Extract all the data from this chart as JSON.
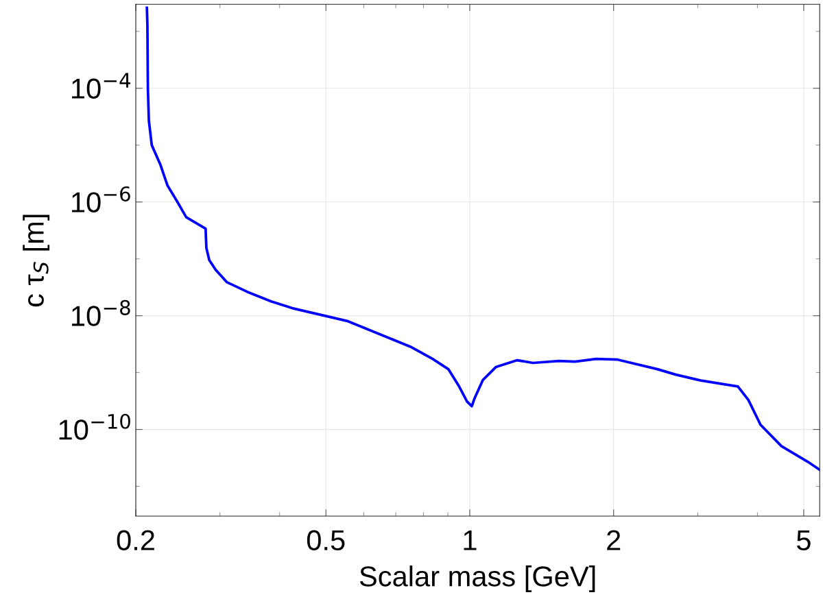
{
  "chart_data": {
    "type": "line",
    "xlabel": "Scalar mass [GeV]",
    "ylabel": "c τ$_{S}$ [m]",
    "log": "xy",
    "grid": true,
    "marker": "none",
    "line_style": "solid",
    "xlim": [
      0.2,
      5.4
    ],
    "ylim": [
      3e-12,
      0.003
    ],
    "xticks": [
      0.2,
      0.5,
      1,
      2,
      5,
      {
        "value": 0.3,
        "label": null
      },
      {
        "value": 0.4,
        "label": null
      },
      {
        "value": 0.6,
        "label": null
      },
      {
        "value": 0.7,
        "label": null
      },
      {
        "value": 0.8,
        "label": null
      },
      {
        "value": 0.9,
        "label": null
      },
      {
        "value": 3,
        "label": null
      },
      {
        "value": 4,
        "label": null
      }
    ],
    "yticks": [
      {
        "value": 0.0001,
        "label": "10$^{−4}$"
      },
      {
        "value": 1e-06,
        "label": "10$^{−6}$"
      },
      {
        "value": 1e-08,
        "label": "10$^{−8}$"
      },
      {
        "value": 1e-10,
        "label": "10$^{−10}$"
      },
      {
        "value": 0.001,
        "label": null
      },
      {
        "value": 1e-05,
        "label": null
      },
      {
        "value": 1e-07,
        "label": null
      },
      {
        "value": 1e-09,
        "label": null
      },
      {
        "value": 1e-11,
        "label": null
      }
    ],
    "series": [
      {
        "color": "#0000ff",
        "x": [
          0.211,
          0.2115,
          0.212,
          0.213,
          0.216,
          0.225,
          0.233,
          0.245,
          0.255,
          0.28,
          0.281,
          0.285,
          0.294,
          0.31,
          0.342,
          0.384,
          0.425,
          0.556,
          0.755,
          0.836,
          0.902,
          0.948,
          0.987,
          1.01,
          1.023,
          1.065,
          1.134,
          1.257,
          1.356,
          1.538,
          1.66,
          1.84,
          2.04,
          2.47,
          2.7,
          3.06,
          3.64,
          3.83,
          4.06,
          4.49,
          5.1,
          5.4
        ],
        "values": [
          0.0026,
          0.0013,
          0.0001,
          2.7e-05,
          1e-05,
          4.6e-06,
          1.95e-06,
          9.7e-07,
          5.4e-07,
          3.4e-07,
          1.56e-07,
          9.5e-08,
          6.4e-08,
          3.9e-08,
          2.64e-08,
          1.79e-08,
          1.36e-08,
          8e-09,
          2.8e-09,
          1.74e-09,
          1.15e-09,
          5.9e-10,
          3.1e-10,
          2.57e-10,
          3.5e-10,
          7.4e-10,
          1.25e-09,
          1.65e-09,
          1.48e-09,
          1.6e-09,
          1.56e-09,
          1.74e-09,
          1.69e-09,
          1.15e-09,
          9.2e-10,
          7.2e-10,
          5.7e-10,
          3.3e-10,
          1.21e-10,
          5.1e-11,
          2.7e-11,
          1.95e-11
        ]
      }
    ]
  }
}
